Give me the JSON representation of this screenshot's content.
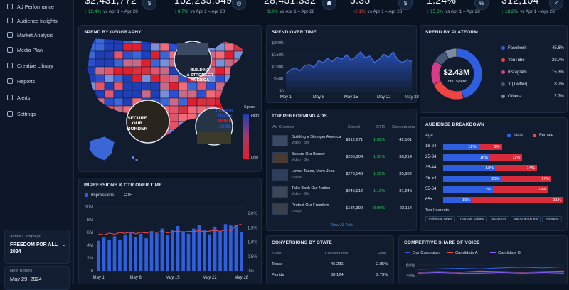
{
  "sidebar": {
    "items": [
      {
        "label": "Ad Performance",
        "icon": "chart-icon"
      },
      {
        "label": "Audience Insights",
        "icon": "users-icon"
      },
      {
        "label": "Market Analysis",
        "icon": "grid-icon"
      },
      {
        "label": "Media Plan",
        "icon": "calendar-icon"
      },
      {
        "label": "Creative Library",
        "icon": "image-icon"
      },
      {
        "label": "Reports",
        "icon": "file-icon"
      },
      {
        "label": "Alerts",
        "icon": "bell-icon"
      },
      {
        "label": "Settings",
        "icon": "gear-icon"
      }
    ],
    "active_campaign_label": "Active Campaign",
    "active_campaign_value": "FREEDOM FOR ALL 2024",
    "next_report_label": "Next Report",
    "next_report_value": "May 29, 2024"
  },
  "kpis": [
    {
      "value": "$2,431,772",
      "change": "12.4%",
      "dir": "up",
      "suffix": "vs Apr 1 – Apr 28",
      "icon": "$"
    },
    {
      "value": "152,235,549",
      "change": "8.7%",
      "dir": "up",
      "suffix": "vs Apr 1 – Apr 28",
      "icon": "◎"
    },
    {
      "value": "28,451,332",
      "change": "9.3%",
      "dir": "up",
      "suffix": "vs Apr 1 – Apr 28",
      "icon": "☗"
    },
    {
      "value": "5.35",
      "change": "-2.1%",
      "dir": "down",
      "suffix": "vs Apr 1 – Apr 28",
      "icon": "$"
    },
    {
      "value": "1.24%",
      "change": "15.6%",
      "dir": "up",
      "suffix": "vs Apr 1 – Apr 28",
      "icon": "%"
    },
    {
      "value": "312,104",
      "change": "18.2%",
      "dir": "up",
      "suffix": "vs Apr 1 – Apr 28",
      "icon": "✓"
    }
  ],
  "geo": {
    "title": "SPEND BY GEOGRAPHY",
    "legend_title": "Spend",
    "legend_high": "High",
    "legend_low": "Low",
    "badge1": [
      "BUILDING",
      "A STRONGER",
      "AMERICA"
    ],
    "badge2": [
      "SECURE",
      "OUR",
      "BORDER"
    ],
    "badge3": [
      "LOWER",
      "TAXES",
      "MORE",
      "JOBS"
    ]
  },
  "spend_time": {
    "title": "SPEND OVER TIME",
    "yticks": [
      "$200K",
      "$150K",
      "$100K",
      "$50K",
      "$0"
    ],
    "xticks": [
      "May 1",
      "May 8",
      "May 15",
      "May 22",
      "May 28"
    ]
  },
  "platform": {
    "title": "SPEND BY PLATFORM",
    "center_value": "$2.43M",
    "center_label": "Total Spend",
    "items": [
      {
        "name": "Facebook",
        "pct": "45.6%",
        "value": 45.6,
        "color": "#2f5fe0"
      },
      {
        "name": "YouTube",
        "pct": "22.7%",
        "value": 22.7,
        "color": "#ef4444"
      },
      {
        "name": "Instagram",
        "pct": "15.3%",
        "value": 15.3,
        "color": "#d93b8a"
      },
      {
        "name": "X (Twitter)",
        "pct": "8.7%",
        "value": 8.7,
        "color": "#4a5878"
      },
      {
        "name": "Others",
        "pct": "7.7%",
        "value": 7.7,
        "color": "#7d8aa3"
      }
    ]
  },
  "impressions": {
    "title": "IMPRESSIONS & CTR OVER TIME",
    "legend_bar": "Impressions",
    "legend_line": "CTR",
    "yleft": [
      "10M",
      "8M",
      "6M",
      "4M",
      "2M",
      "0"
    ],
    "yright": [
      "2.0%",
      "1.5%",
      "1.0%",
      "0.5%",
      "0%"
    ],
    "xticks": [
      "May 1",
      "May 8",
      "May 15",
      "May 22",
      "May 28"
    ]
  },
  "top_ads": {
    "title": "TOP PERFORMING ADS",
    "headers": [
      "Ad Creative",
      "Spend",
      "CTR",
      "Conversions"
    ],
    "rows": [
      {
        "name": "Building a Stronger America",
        "type": "Video · 30s",
        "spend": "$312,671",
        "ctr": "1.62%",
        "conv": "42,501"
      },
      {
        "name": "Secure Our Border",
        "type": "Video · 30s",
        "spend": "$285,904",
        "ctr": "1.35%",
        "conv": "38,214"
      },
      {
        "name": "Lower Taxes, More Jobs",
        "type": "Image",
        "spend": "$276,543",
        "ctr": "1.28%",
        "conv": "35,982"
      },
      {
        "name": "Take Back Our Nation",
        "type": "Video · 30s",
        "spend": "$245,812",
        "ctr": "1.12%",
        "conv": "31,245"
      },
      {
        "name": "Protect Our Freedom",
        "type": "Image",
        "spend": "$184,392",
        "ctr": "0.98%",
        "conv": "22,114"
      }
    ],
    "view_all": "View All Ads"
  },
  "audience": {
    "title": "AUDIENCE BREAKDOWN",
    "age_label": "Age",
    "male_label": "Male",
    "female_label": "Female",
    "rows": [
      {
        "age": "18-24",
        "male": "12%",
        "female": "8%",
        "m": 12,
        "f": 8
      },
      {
        "age": "25-34",
        "male": "16%",
        "female": "11%",
        "m": 16,
        "f": 11
      },
      {
        "age": "35-44",
        "male": "18%",
        "female": "14%",
        "m": 18,
        "f": 14
      },
      {
        "age": "45-54",
        "male": "20%",
        "female": "17%",
        "m": 20,
        "f": 17
      },
      {
        "age": "55-64",
        "male": "17%",
        "female": "19%",
        "m": 17,
        "f": 19
      },
      {
        "age": "65+",
        "male": "10%",
        "female": "31%",
        "m": 10,
        "f": 31
      }
    ],
    "interests_label": "Top Interests",
    "interests": [
      "Politics & News",
      "Patriotic Values",
      "Economy",
      "2nd Amendment",
      "Veterans"
    ]
  },
  "conversions": {
    "title": "CONVERSIONS BY STATE",
    "headers": [
      "State",
      "Conversions",
      "Rate"
    ],
    "rows": [
      {
        "state": "Texas",
        "conv": "45,231",
        "rate": "2.85%"
      },
      {
        "state": "Florida",
        "conv": "38,124",
        "rate": "2.73%"
      }
    ]
  },
  "voice": {
    "title": "COMPETITIVE SHARE OF VOICE",
    "legend": [
      {
        "name": "Our Campaign",
        "color": "#2f5fe0"
      },
      {
        "name": "Candidate A",
        "color": "#ef4444"
      },
      {
        "name": "Candidate B",
        "color": "#8b5cf6"
      }
    ],
    "yticks": [
      "60%",
      "40%"
    ]
  },
  "chart_data": [
    {
      "type": "area",
      "title": "SPEND OVER TIME",
      "x": [
        "May 1",
        "May 2",
        "May 3",
        "May 4",
        "May 5",
        "May 6",
        "May 7",
        "May 8",
        "May 9",
        "May 10",
        "May 11",
        "May 12",
        "May 13",
        "May 14",
        "May 15",
        "May 16",
        "May 17",
        "May 18",
        "May 19",
        "May 20",
        "May 21",
        "May 22",
        "May 23",
        "May 24",
        "May 25",
        "May 26",
        "May 27",
        "May 28"
      ],
      "values": [
        72000,
        88000,
        95000,
        84000,
        105000,
        110000,
        98000,
        126000,
        118000,
        135000,
        122000,
        140000,
        132000,
        150000,
        128000,
        142000,
        162000,
        138000,
        145000,
        118000,
        132000,
        152000,
        140000,
        162000,
        128000,
        118000,
        130000,
        122000
      ],
      "ylim": [
        0,
        200000
      ]
    },
    {
      "type": "bar",
      "title": "IMPRESSIONS & CTR OVER TIME",
      "x": [
        "May 1",
        "May 2",
        "May 3",
        "May 4",
        "May 5",
        "May 6",
        "May 7",
        "May 8",
        "May 9",
        "May 10",
        "May 11",
        "May 12",
        "May 13",
        "May 14",
        "May 15",
        "May 16",
        "May 17",
        "May 18",
        "May 19",
        "May 20",
        "May 21",
        "May 22",
        "May 23",
        "May 24",
        "May 25",
        "May 26",
        "May 27",
        "May 28"
      ],
      "series": [
        {
          "name": "Impressions",
          "values": [
            4.7,
            5.2,
            4.9,
            5.4,
            4.8,
            5.6,
            6.0,
            5.3,
            5.8,
            5.1,
            6.2,
            5.9,
            6.6,
            5.6,
            6.4,
            7.0,
            6.2,
            5.8,
            6.6,
            7.2,
            6.4,
            5.7,
            6.9,
            6.1,
            7.3,
            7.1,
            7.2,
            6.0
          ],
          "unit": "M"
        },
        {
          "name": "CTR",
          "values": [
            1.28,
            1.25,
            1.31,
            1.27,
            1.33,
            1.3,
            1.35,
            1.29,
            1.34,
            1.31,
            1.36,
            1.33,
            1.37,
            1.32,
            1.35,
            1.38,
            1.34,
            1.37,
            1.36,
            1.4,
            1.35,
            1.38,
            1.41,
            1.37,
            1.43,
            1.4,
            1.57,
            1.62
          ],
          "unit": "%"
        }
      ],
      "yleft_lim": [
        0,
        10
      ],
      "yright_lim": [
        0,
        2.0
      ]
    },
    {
      "type": "pie",
      "title": "SPEND BY PLATFORM",
      "categories": [
        "Facebook",
        "YouTube",
        "Instagram",
        "X (Twitter)",
        "Others"
      ],
      "values": [
        45.6,
        22.7,
        15.3,
        8.7,
        7.7
      ]
    },
    {
      "type": "bar",
      "title": "AUDIENCE BREAKDOWN",
      "categories": [
        "18-24",
        "25-34",
        "35-44",
        "45-54",
        "55-64",
        "65+"
      ],
      "series": [
        {
          "name": "Male",
          "values": [
            12,
            16,
            18,
            20,
            17,
            10
          ]
        },
        {
          "name": "Female",
          "values": [
            8,
            11,
            14,
            17,
            19,
            31
          ]
        }
      ]
    },
    {
      "type": "line",
      "title": "COMPETITIVE SHARE OF VOICE",
      "series": [
        {
          "name": "Our Campaign",
          "values": [
            52,
            53,
            54,
            53,
            55,
            56,
            55,
            57
          ]
        },
        {
          "name": "Candidate A",
          "values": [
            47,
            48,
            47,
            49,
            48,
            47,
            48,
            49
          ]
        },
        {
          "name": "Candidate B",
          "values": [
            45,
            46,
            45,
            45,
            46,
            45,
            46,
            45
          ]
        }
      ],
      "ylim": [
        30,
        70
      ]
    }
  ]
}
